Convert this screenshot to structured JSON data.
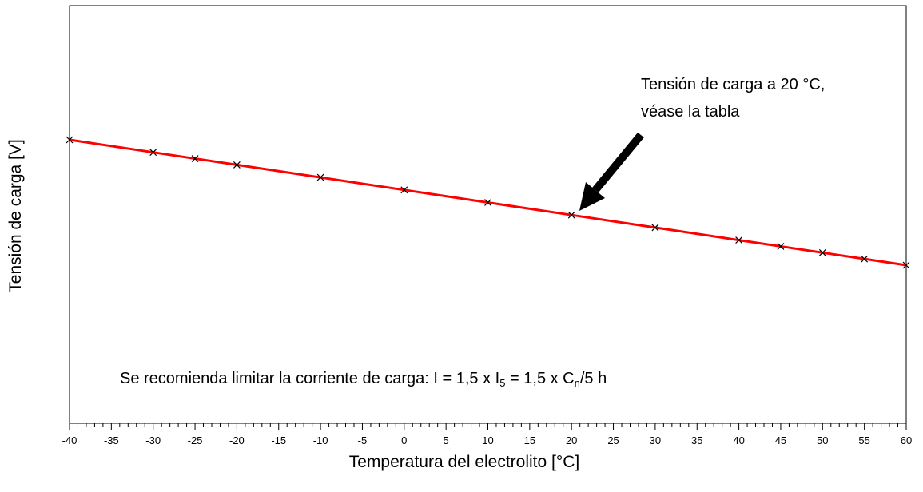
{
  "chart_data": {
    "type": "line",
    "xlabel": "Temperatura del electrolito [°C]",
    "ylabel": "Tensión de carga [V]",
    "xlim": [
      -40,
      60
    ],
    "x_ticks": [
      -40,
      -35,
      -30,
      -25,
      -20,
      -15,
      -10,
      -5,
      0,
      5,
      10,
      15,
      20,
      25,
      30,
      35,
      40,
      45,
      50,
      55,
      60
    ],
    "x_minor_step": 1,
    "y_ticks_shown": false,
    "grid": false,
    "series": [
      {
        "color": "#ff0000",
        "marker": "x",
        "points": [
          {
            "x": -40,
            "y": 1.0
          },
          {
            "x": -30,
            "y": 0.9
          },
          {
            "x": -25,
            "y": 0.85
          },
          {
            "x": -20,
            "y": 0.8
          },
          {
            "x": -10,
            "y": 0.7
          },
          {
            "x": 0,
            "y": 0.6
          },
          {
            "x": 10,
            "y": 0.5
          },
          {
            "x": 20,
            "y": 0.4
          },
          {
            "x": 30,
            "y": 0.3
          },
          {
            "x": 40,
            "y": 0.2
          },
          {
            "x": 45,
            "y": 0.15
          },
          {
            "x": 50,
            "y": 0.1
          },
          {
            "x": 55,
            "y": 0.05
          },
          {
            "x": 60,
            "y": 0.0
          }
        ]
      }
    ],
    "annotations": {
      "arrow_note_line1": "Tensión de carga a 20 °C,",
      "arrow_note_line2": "véase la tabla",
      "arrow_target_x": 20,
      "recommendation_prefix": "Se recomienda limitar la corriente de carga: I = 1,5 x I",
      "recommendation_sub1": "5",
      "recommendation_mid": " = 1,5 x C",
      "recommendation_sub2": "n",
      "recommendation_suffix": "/5 h"
    }
  }
}
